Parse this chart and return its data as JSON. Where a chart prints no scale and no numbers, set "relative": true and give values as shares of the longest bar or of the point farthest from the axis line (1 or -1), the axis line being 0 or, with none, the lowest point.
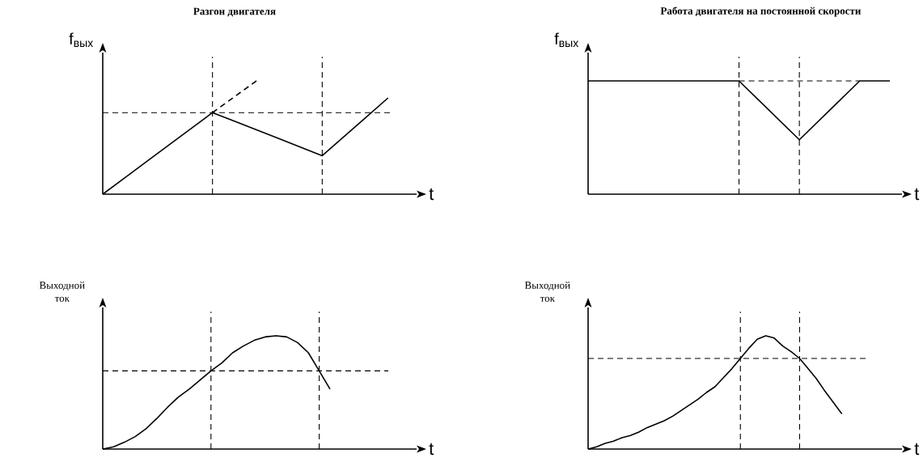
{
  "chart_data": [
    {
      "type": "line",
      "title": "Разгон двигателя",
      "ylabel": "f$_{вых}$",
      "xlabel": "t",
      "relative": true,
      "tick_labels": false,
      "categories": [
        null,
        null,
        null,
        null,
        null,
        null,
        null,
        null,
        null,
        null,
        null,
        null,
        null,
        null
      ],
      "series": [
        {
          "color": "#000000",
          "line_style": "solid",
          "values": [
            0,
            0.144,
            0.288,
            0.432,
            0.576,
            0.72,
            0.644,
            0.568,
            0.492,
            0.416,
            0.34,
            0.51,
            0.68,
            0.85
          ]
        },
        {
          "color": "#000000",
          "line_style": "dashed",
          "values": [
            null,
            null,
            null,
            null,
            null,
            0.72,
            0.86,
            1,
            null,
            null,
            null,
            null,
            null,
            null
          ]
        }
      ],
      "ref_lines": [
        {
          "axis": "y",
          "value": 0.72,
          "line_style": "dashed"
        }
      ]
    },
    {
      "type": "line",
      "title": "Работа двигателя на постоянной скорости",
      "ylabel": "f$_{вых}$",
      "xlabel": "t",
      "relative": true,
      "tick_labels": false,
      "categories": [
        null,
        null,
        null,
        null,
        null,
        null,
        null,
        null,
        null,
        null,
        null
      ],
      "series": [
        {
          "color": "#000000",
          "line_style": "solid",
          "values": [
            1,
            1,
            1,
            1,
            1,
            1,
            0.74,
            0.48,
            0.74,
            1,
            1
          ]
        }
      ]
    },
    {
      "type": "line",
      "ylabel": "Выходной ток",
      "xlabel": "t",
      "relative": true,
      "tick_labels": false,
      "categories": [
        null,
        null,
        null,
        null,
        null,
        null,
        null,
        null,
        null,
        null,
        null,
        null,
        null,
        null,
        null,
        null,
        null,
        null,
        null,
        null,
        null,
        null
      ],
      "series": [
        {
          "color": "#000000",
          "line_style": "solid",
          "values": [
            0,
            0.02,
            0.06,
            0.11,
            0.18,
            0.27,
            0.37,
            0.46,
            0.53,
            0.61,
            0.69,
            0.76,
            0.85,
            0.91,
            0.96,
            0.99,
            1,
            0.99,
            0.94,
            0.85,
            0.69,
            0.53
          ]
        }
      ],
      "ref_lines": [
        {
          "axis": "y",
          "value": 0.69,
          "line_style": "dashed"
        }
      ]
    },
    {
      "type": "line",
      "ylabel": "Выходной ток",
      "xlabel": "t",
      "relative": true,
      "tick_labels": false,
      "categories": [
        null,
        null,
        null,
        null,
        null,
        null,
        null,
        null,
        null,
        null,
        null,
        null,
        null,
        null,
        null,
        null,
        null,
        null,
        null,
        null,
        null,
        null,
        null,
        null,
        null,
        null,
        null,
        null,
        null,
        null,
        null
      ],
      "series": [
        {
          "color": "#000000",
          "line_style": "solid",
          "values": [
            0,
            0.02,
            0.05,
            0.07,
            0.1,
            0.12,
            0.15,
            0.19,
            0.22,
            0.25,
            0.29,
            0.34,
            0.39,
            0.44,
            0.5,
            0.55,
            0.63,
            0.71,
            0.8,
            0.89,
            0.97,
            1,
            0.98,
            0.91,
            0.86,
            0.8,
            0.71,
            0.62,
            0.51,
            0.41,
            0.31
          ]
        }
      ],
      "ref_lines": [
        {
          "axis": "y",
          "value": 0.8,
          "line_style": "dashed"
        }
      ]
    }
  ]
}
